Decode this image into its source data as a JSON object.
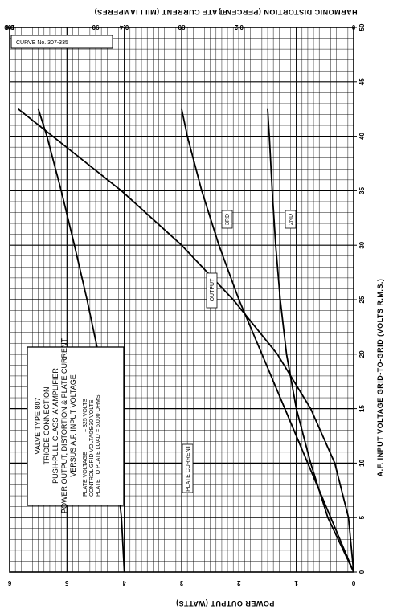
{
  "chart_data": {
    "type": "line",
    "curve_no": "CURVE No. 307-335",
    "title_lines": [
      "VALVE  TYPE  807",
      "TRIODE  CONNECTION",
      "PUSH-PULL  CLASS  'A'   AMPLIFIER",
      "POWER OUTPUT, DISTORTION & PLATE CURRENT",
      "VERSUS  A.F.  INPUT  VOLTAGE"
    ],
    "conditions": [
      {
        "label": "PLATE  VOLTAGE",
        "value": "= 325 VOLTS"
      },
      {
        "label": "CONTROL  GRID VOLTAGE",
        "value": "= -30 VOLTS"
      },
      {
        "label": "PLATE  TO  PLATE LOAD",
        "value": "= 6,000 OHMS"
      }
    ],
    "xlabel": "A.F.  INPUT  VOLTAGE   GRID-TO-GRID  (VOLTS R.M.S.)",
    "x_ticks": [
      "0",
      "5",
      "10",
      "15",
      "20",
      "25",
      "30",
      "35",
      "40",
      "45",
      "50"
    ],
    "xlim": [
      0,
      50
    ],
    "axes": [
      {
        "id": "power",
        "label": "POWER  OUTPUT  (WATTS)",
        "ticks": [
          "0",
          "1",
          "2",
          "3",
          "4",
          "5",
          "6"
        ],
        "lim": [
          0,
          6
        ]
      },
      {
        "id": "distortion",
        "label": "HARMONIC  DISTORTION  (PERCENT)",
        "ticks": [
          "0",
          "0.2",
          "0.4",
          "0.6"
        ],
        "lim": [
          0,
          0.6
        ]
      },
      {
        "id": "current",
        "label": "PLATE  CURRENT  (MILLIAMPERES)",
        "ticks": [
          "100",
          "90",
          "80"
        ],
        "lim": [
          60,
          100
        ]
      }
    ],
    "series": [
      {
        "name": "OUTPUT",
        "axis": "power",
        "x": [
          0,
          5,
          10,
          15,
          20,
          25,
          30,
          35,
          40,
          42.5
        ],
        "y": [
          0,
          0.09,
          0.33,
          0.75,
          1.33,
          2.1,
          3.0,
          4.05,
          5.25,
          5.85
        ]
      },
      {
        "name": "PLATE  CURRENT",
        "axis": "power",
        "x": [
          0,
          5,
          10,
          15,
          20,
          25,
          30,
          35,
          40,
          42.5
        ],
        "y": [
          4.0,
          4.05,
          4.15,
          4.27,
          4.45,
          4.65,
          4.87,
          5.1,
          5.35,
          5.5
        ]
      },
      {
        "name": "3RD",
        "axis": "distortion",
        "x": [
          0,
          5,
          10,
          15,
          20,
          25,
          30,
          35,
          40,
          42.5
        ],
        "y": [
          0,
          0.04,
          0.08,
          0.12,
          0.16,
          0.2,
          0.235,
          0.265,
          0.29,
          0.3
        ]
      },
      {
        "name": "2ND",
        "axis": "distortion",
        "x": [
          0,
          5,
          10,
          15,
          20,
          25,
          30,
          35,
          40,
          42.5
        ],
        "y": [
          0,
          0.045,
          0.075,
          0.1,
          0.117,
          0.128,
          0.136,
          0.142,
          0.147,
          0.15
        ]
      }
    ]
  }
}
